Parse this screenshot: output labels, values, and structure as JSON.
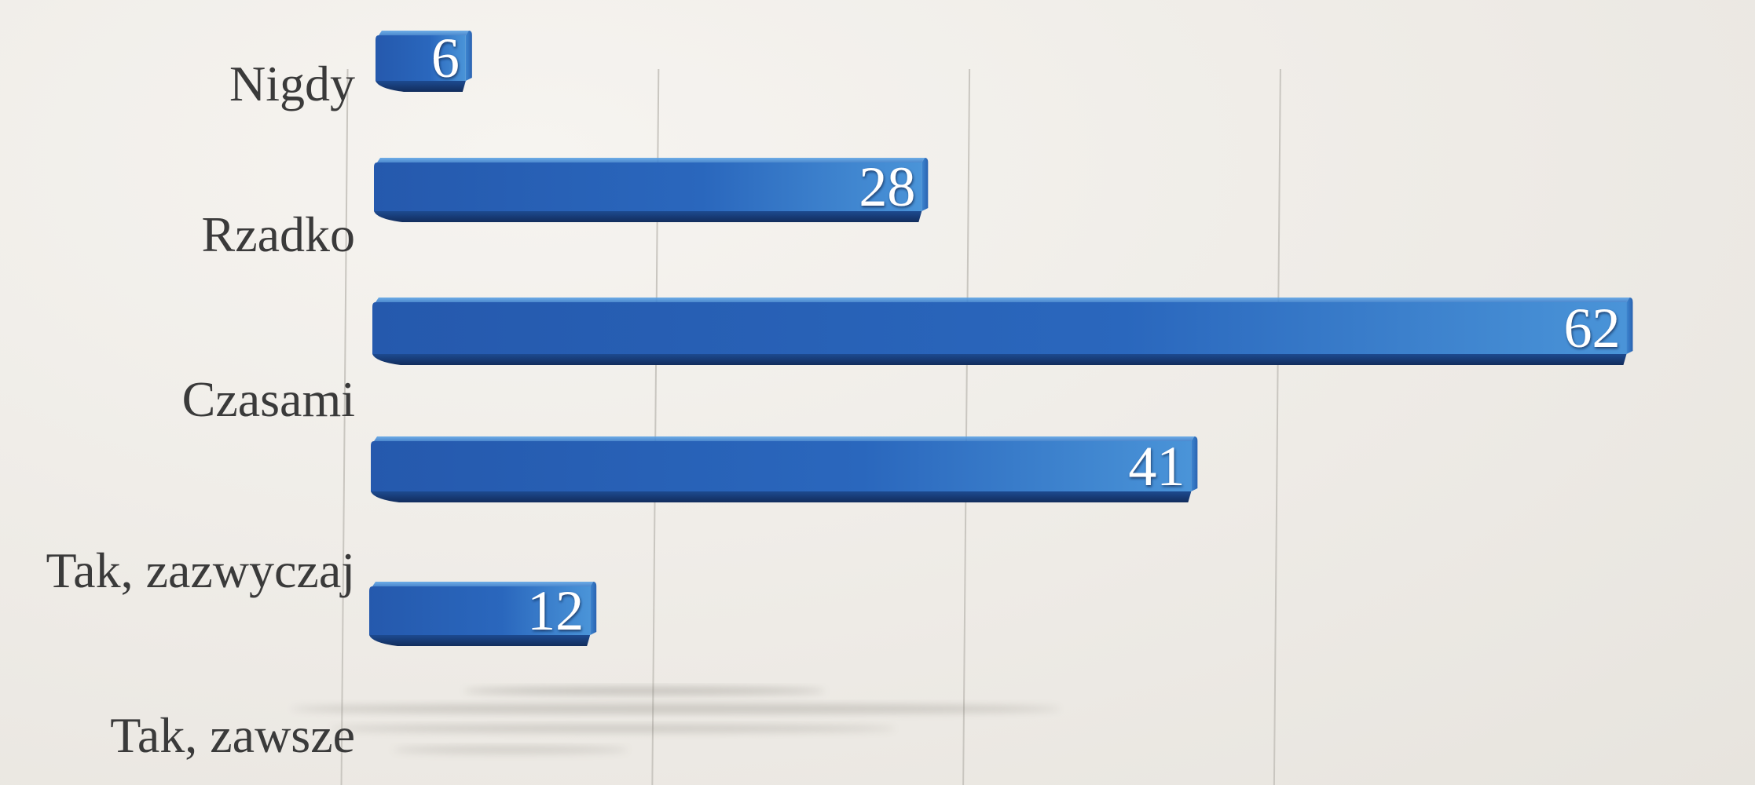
{
  "chart_data": {
    "type": "bar",
    "orientation": "horizontal",
    "categories": [
      "Nigdy",
      "Rzadko",
      "Czasami",
      "Tak, zazwyczaj",
      "Tak, zawsze"
    ],
    "values": [
      6,
      28,
      62,
      41,
      12
    ],
    "data_labels": [
      "6",
      "28",
      "62",
      "41",
      "12"
    ],
    "xlim": [
      -4,
      66
    ],
    "gridline_values": [
      0,
      15,
      30,
      45
    ],
    "grid": true,
    "legend": "none",
    "bar_color": "#2a63b6",
    "bar_highlight_color": "#4b95d9",
    "bar_shadow_color": "#16386e",
    "background_color": "#efede8",
    "label_color": "#3a3a3a",
    "value_label_color": "#ffffff"
  }
}
